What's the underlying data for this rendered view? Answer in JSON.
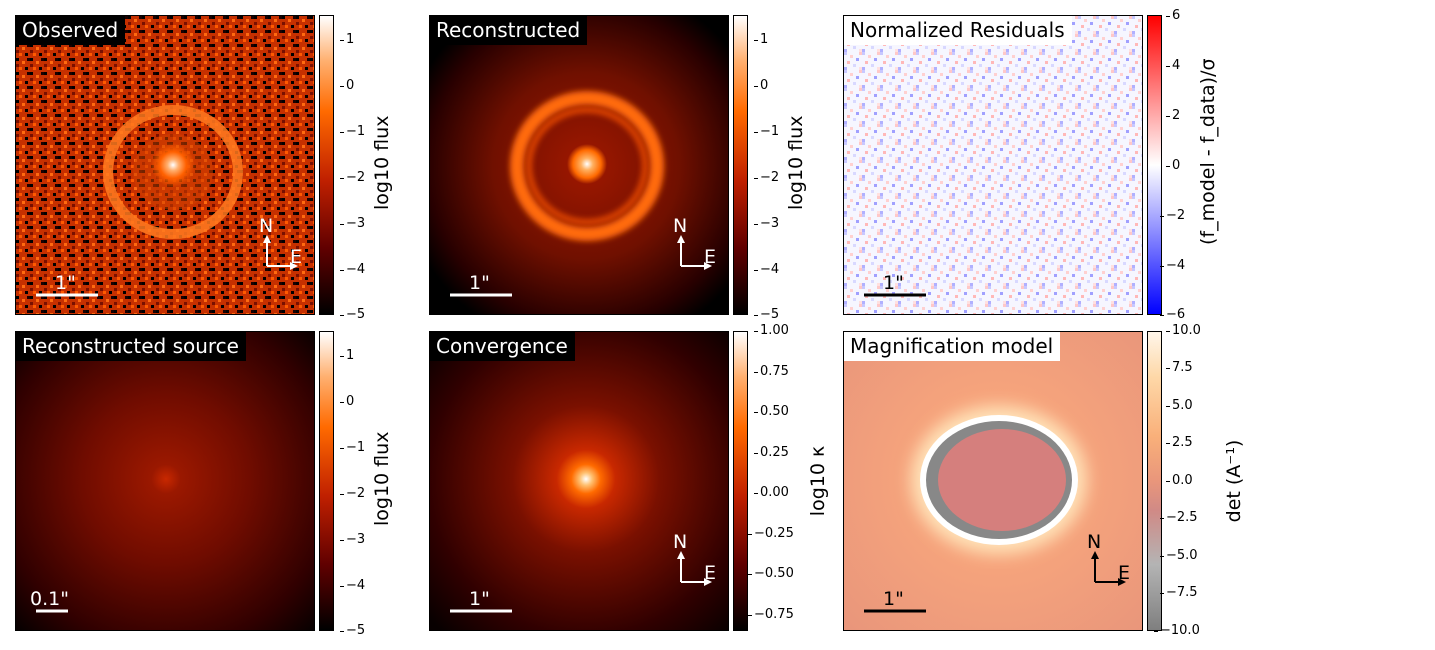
{
  "chart_data": [
    {
      "type": "heatmap",
      "title": "Observed",
      "colormap": "gist_heat",
      "colorbar": {
        "label": "log10 flux",
        "ticks": [
          "1",
          "0",
          "−1",
          "−2",
          "−3",
          "−4",
          "−5"
        ],
        "range": [
          -5,
          1.5
        ]
      },
      "scale_bar": "1\"",
      "compass": {
        "north": "N",
        "east": "E"
      }
    },
    {
      "type": "heatmap",
      "title": "Reconstructed",
      "colormap": "gist_heat",
      "colorbar": {
        "label": "log10 flux",
        "ticks": [
          "1",
          "0",
          "−1",
          "−2",
          "−3",
          "−4",
          "−5"
        ],
        "range": [
          -5,
          1.5
        ]
      },
      "scale_bar": "1\"",
      "compass": {
        "north": "N",
        "east": "E"
      }
    },
    {
      "type": "heatmap",
      "title": "Normalized Residuals",
      "colormap": "bwr",
      "colorbar": {
        "label": "(f_model - f_data)/σ",
        "ticks": [
          "6",
          "4",
          "2",
          "0",
          "−2",
          "−4",
          "−6"
        ],
        "range": [
          -6,
          6
        ]
      },
      "scale_bar": "1\""
    },
    {
      "type": "heatmap",
      "title": "Reconstructed source",
      "colormap": "gist_heat",
      "colorbar": {
        "label": "log10 flux",
        "ticks": [
          "1",
          "0",
          "−1",
          "−2",
          "−3",
          "−4",
          "−5"
        ],
        "range": [
          -5,
          1.5
        ]
      },
      "scale_bar": "0.1\""
    },
    {
      "type": "heatmap",
      "title": "Convergence",
      "colormap": "gist_heat",
      "colorbar": {
        "label": "log10 κ",
        "ticks": [
          "1.00",
          "0.75",
          "0.50",
          "0.25",
          "0.00",
          "−0.25",
          "−0.50",
          "−0.75"
        ],
        "range": [
          -0.85,
          1.0
        ]
      },
      "scale_bar": "1\"",
      "compass": {
        "north": "N",
        "east": "E"
      }
    },
    {
      "type": "heatmap",
      "title": "Magnification model",
      "colormap": "RdGy_r",
      "colorbar": {
        "label": "det (A⁻¹)",
        "ticks": [
          "10.0",
          "7.5",
          "5.0",
          "2.5",
          "0.0",
          "−2.5",
          "−5.0",
          "−7.5",
          "−10.0"
        ],
        "range": [
          -10,
          10
        ]
      },
      "scale_bar": "1\"",
      "compass": {
        "north": "N",
        "east": "E"
      }
    }
  ]
}
